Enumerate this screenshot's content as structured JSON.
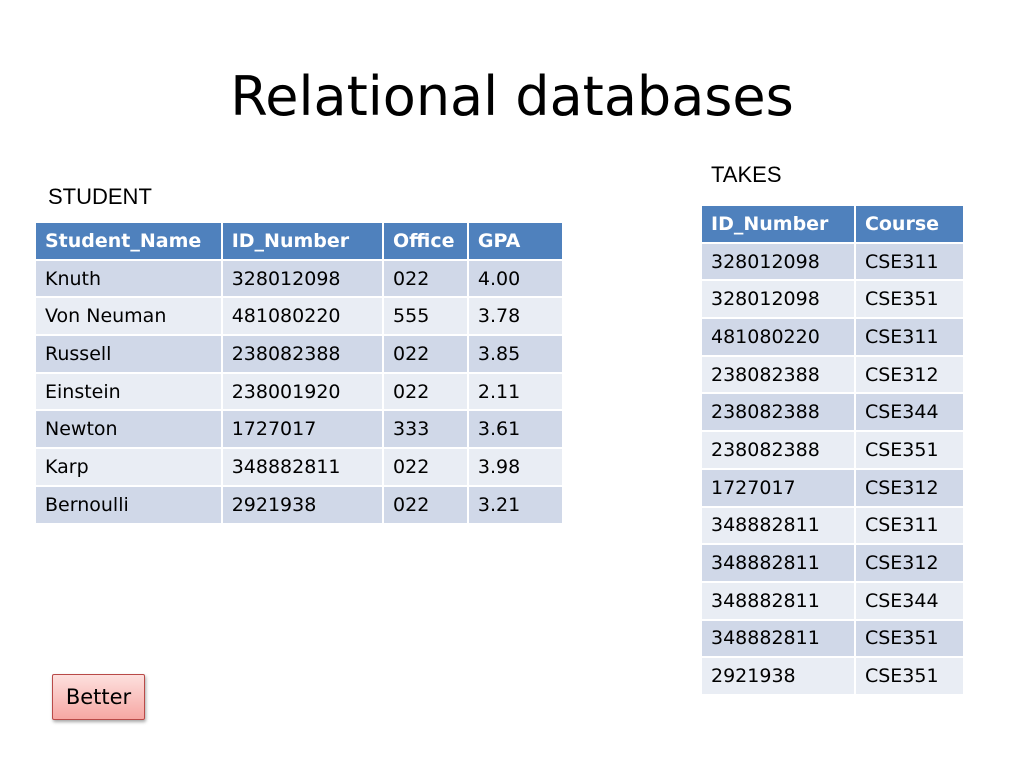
{
  "title": "Relational databases",
  "student": {
    "caption": "STUDENT",
    "columns": [
      "Student_Name",
      "ID_Number",
      "Office",
      "GPA"
    ],
    "rows": [
      [
        "Knuth",
        "328012098",
        "022",
        "4.00"
      ],
      [
        "Von Neuman",
        "481080220",
        "555",
        "3.78"
      ],
      [
        "Russell",
        "238082388",
        "022",
        "3.85"
      ],
      [
        "Einstein",
        "238001920",
        "022",
        "2.11"
      ],
      [
        "Newton",
        "1727017",
        "333",
        "3.61"
      ],
      [
        "Karp",
        "348882811",
        "022",
        "3.98"
      ],
      [
        "Bernoulli",
        "2921938",
        "022",
        "3.21"
      ]
    ]
  },
  "takes": {
    "caption": "TAKES",
    "columns": [
      "ID_Number",
      "Course"
    ],
    "rows": [
      [
        "328012098",
        "CSE311"
      ],
      [
        "328012098",
        "CSE351"
      ],
      [
        "481080220",
        "CSE311"
      ],
      [
        "238082388",
        "CSE312"
      ],
      [
        "238082388",
        "CSE344"
      ],
      [
        "238082388",
        "CSE351"
      ],
      [
        "1727017",
        "CSE312"
      ],
      [
        "348882811",
        "CSE311"
      ],
      [
        "348882811",
        "CSE312"
      ],
      [
        "348882811",
        "CSE344"
      ],
      [
        "348882811",
        "CSE351"
      ],
      [
        "2921938",
        "CSE351"
      ]
    ]
  },
  "button": {
    "label": "Better"
  },
  "colors": {
    "header_bg": "#4f81bd",
    "row_dark": "#d0d8e8",
    "row_light": "#e9edf4",
    "button_bg": "#f6a7a3"
  }
}
